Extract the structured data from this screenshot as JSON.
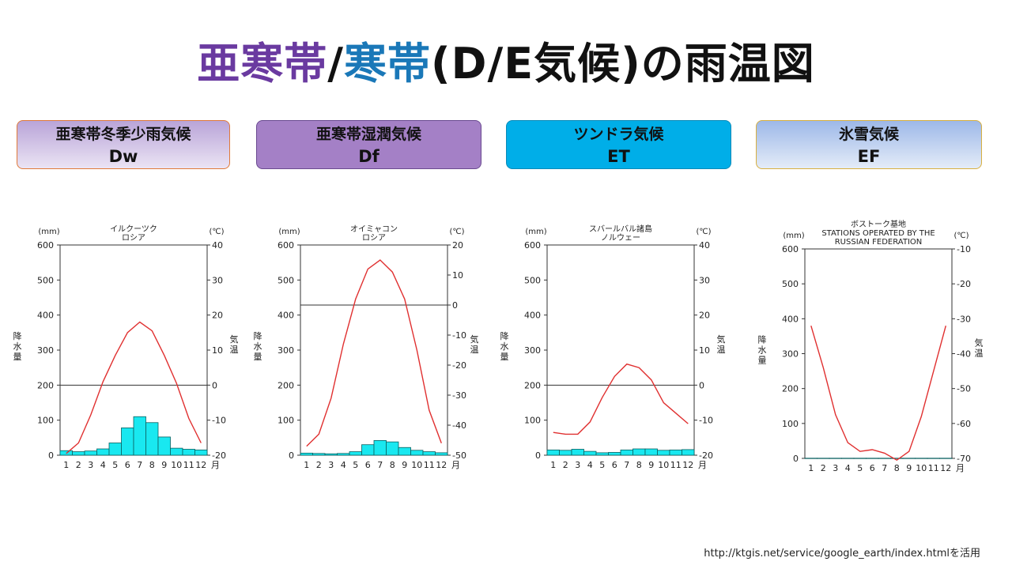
{
  "title": {
    "part1": "亜寒帯",
    "sep1": "/",
    "part2": "寒帯",
    "part3": "(D/E気候)の雨温図"
  },
  "boxes": [
    {
      "name": "亜寒帯冬季少雨気候",
      "code": "Dw"
    },
    {
      "name": "亜寒帯湿潤気候",
      "code": "Df"
    },
    {
      "name": "ツンドラ気候",
      "code": "ET"
    },
    {
      "name": "氷雪気候",
      "code": "EF"
    }
  ],
  "credit": "http://ktgis.net/service/google_earth/index.htmlを活用",
  "colors": {
    "temp_line": "#e03030",
    "precip_bar": "#19e8f0",
    "bar_edge": "#0a6060",
    "purple": "#6a3aa0",
    "blue": "#1a78b8"
  },
  "chart_data": [
    {
      "type": "bar+line",
      "title_lines": [
        "イルクーツク",
        "ロシア"
      ],
      "left_unit": "(mm)",
      "right_unit": "(℃)",
      "ylabel_left": "降水量",
      "ylabel_right": "気温",
      "x": [
        "1",
        "2",
        "3",
        "4",
        "5",
        "6",
        "7",
        "8",
        "9",
        "10",
        "11",
        "12"
      ],
      "x_suffix": "月",
      "precip_ylim": [
        0,
        600
      ],
      "precip_ticks": [
        0,
        100,
        200,
        300,
        400,
        500,
        600
      ],
      "temp_ylim": [
        -20,
        40
      ],
      "temp_ticks": [
        -20,
        -10,
        0,
        10,
        20,
        30,
        40
      ],
      "precipitation": [
        13,
        10,
        12,
        18,
        35,
        78,
        110,
        93,
        52,
        20,
        17,
        15
      ],
      "temperature": [
        -19.5,
        -16.5,
        -8.5,
        1,
        8.5,
        15,
        18,
        15.5,
        8.5,
        0.5,
        -9.5,
        -16.5
      ]
    },
    {
      "type": "bar+line",
      "title_lines": [
        "オイミャコン",
        "ロシア"
      ],
      "left_unit": "(mm)",
      "right_unit": "(℃)",
      "ylabel_left": "降水量",
      "ylabel_right": "気温",
      "x": [
        "1",
        "2",
        "3",
        "4",
        "5",
        "6",
        "7",
        "8",
        "9",
        "10",
        "11",
        "12"
      ],
      "x_suffix": "月",
      "precip_ylim": [
        0,
        600
      ],
      "precip_ticks": [
        0,
        100,
        200,
        300,
        400,
        500,
        600
      ],
      "temp_ylim": [
        -50,
        20
      ],
      "temp_ticks": [
        -50,
        -40,
        -30,
        -20,
        -10,
        0,
        10,
        20
      ],
      "precipitation": [
        6,
        5,
        4,
        5,
        10,
        30,
        42,
        38,
        22,
        14,
        10,
        7
      ],
      "temperature": [
        -47,
        -43,
        -31,
        -13,
        2,
        12,
        15,
        11,
        2,
        -15,
        -35,
        -46
      ]
    },
    {
      "type": "bar+line",
      "title_lines": [
        "スバールバル諸島",
        "ノルウェー"
      ],
      "left_unit": "(mm)",
      "right_unit": "(℃)",
      "ylabel_left": "降水量",
      "ylabel_right": "気温",
      "x": [
        "1",
        "2",
        "3",
        "4",
        "5",
        "6",
        "7",
        "8",
        "9",
        "10",
        "11",
        "12"
      ],
      "x_suffix": "月",
      "precip_ylim": [
        0,
        600
      ],
      "precip_ticks": [
        0,
        100,
        200,
        300,
        400,
        500,
        600
      ],
      "temp_ylim": [
        -20,
        40
      ],
      "temp_ticks": [
        -20,
        -10,
        0,
        10,
        20,
        30,
        40
      ],
      "precipitation": [
        15,
        14,
        17,
        11,
        7,
        8,
        15,
        18,
        18,
        14,
        15,
        16
      ],
      "temperature": [
        -13.5,
        -14,
        -14,
        -10.5,
        -3.5,
        2.5,
        6,
        5,
        1.5,
        -5,
        -8,
        -11
      ]
    },
    {
      "type": "bar+line",
      "title_lines": [
        "ボストーク基地",
        "STATIONS OPERATED BY THE",
        "RUSSIAN FEDERATION"
      ],
      "left_unit": "(mm)",
      "right_unit": "(℃)",
      "ylabel_left": "降水量",
      "ylabel_right": "気温",
      "x": [
        "1",
        "2",
        "3",
        "4",
        "5",
        "6",
        "7",
        "8",
        "9",
        "10",
        "11",
        "12"
      ],
      "x_suffix": "月",
      "precip_ylim": [
        0,
        600
      ],
      "precip_ticks": [
        0,
        100,
        200,
        300,
        400,
        500,
        600
      ],
      "temp_ylim": [
        -70,
        -10
      ],
      "temp_ticks": [
        -70,
        -60,
        -50,
        -40,
        -30,
        -20,
        -10
      ],
      "precipitation": [
        0.5,
        0.5,
        0.5,
        0.5,
        0.5,
        0.5,
        0.5,
        0.5,
        0.5,
        0.5,
        0.5,
        0.5
      ],
      "temperature": [
        -32,
        -44,
        -57.5,
        -65.5,
        -68,
        -67.5,
        -68.5,
        -70.5,
        -68,
        -58,
        -45,
        -32
      ]
    }
  ]
}
